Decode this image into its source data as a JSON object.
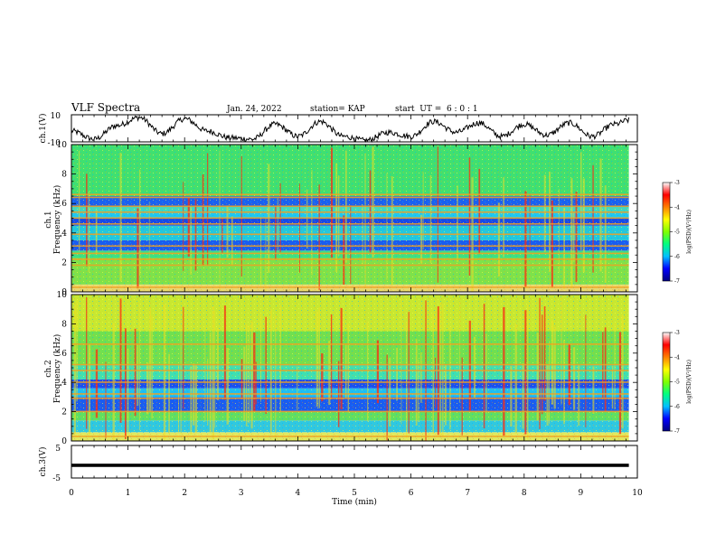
{
  "header": {
    "title": "VLF Spectra",
    "date": "Jan. 24, 2022",
    "station": "station= KAP",
    "start_ut": "start  UT =  6 : 0 : 1"
  },
  "chart_data": [
    {
      "type": "line",
      "panel": "ch1-waveform",
      "ylabel": "ch.1(V)",
      "ylim": [
        -10,
        10
      ],
      "yticks": [
        "10",
        "-10"
      ],
      "x": [
        0,
        0.4,
        0.8,
        1.2,
        1.6,
        2.0,
        2.4,
        2.8,
        3.2,
        3.6,
        4.0,
        4.4,
        4.8,
        5.2,
        5.6,
        6.0,
        6.4,
        6.8,
        7.2,
        7.6,
        8.0,
        8.4,
        8.8,
        9.2,
        9.6,
        9.85
      ],
      "values": [
        -2,
        -8,
        2,
        8,
        -4,
        7,
        -2,
        -7,
        -8,
        3,
        -6,
        5,
        -6,
        -9,
        -3,
        -6,
        5,
        -3,
        4,
        -6,
        3,
        -5,
        4,
        -6,
        3,
        6
      ],
      "line_color": "#000000"
    },
    {
      "type": "heatmap",
      "panel": "ch1-spectrogram",
      "ylabel": "ch.1\nFrequency  (kHz)",
      "xlim": [
        0,
        10
      ],
      "ylim": [
        0,
        10
      ],
      "yticks": [
        "0",
        "2",
        "4",
        "6",
        "8",
        "10"
      ],
      "colorbar": {
        "label": "log(PSD)(V²/Hz)",
        "range": [
          -7,
          -3
        ],
        "ticks": [
          "-3",
          "-4",
          "-5",
          "-6",
          "-7"
        ],
        "colors": [
          "#000080",
          "#0000ff",
          "#00c0ff",
          "#00ff80",
          "#80ff00",
          "#ffff00",
          "#ff8000",
          "#ff0000",
          "#ffffff"
        ]
      },
      "data_end_min": 9.85,
      "base_bands": [
        {
          "from": 0.0,
          "to": 0.5,
          "color": "#e8d870"
        },
        {
          "from": 0.5,
          "to": 2.3,
          "color": "#7ee24a"
        },
        {
          "from": 2.3,
          "to": 2.8,
          "color": "#40e080"
        },
        {
          "from": 2.8,
          "to": 3.5,
          "color": "#1a5cf0"
        },
        {
          "from": 3.5,
          "to": 4.5,
          "color": "#20c8e0"
        },
        {
          "from": 4.5,
          "to": 5.0,
          "color": "#1848e8"
        },
        {
          "from": 5.0,
          "to": 5.4,
          "color": "#20c8f0"
        },
        {
          "from": 5.4,
          "to": 5.8,
          "color": "#40d8c0"
        },
        {
          "from": 5.8,
          "to": 6.5,
          "color": "#1a60f0"
        },
        {
          "from": 6.5,
          "to": 10.0,
          "color": "#40e070"
        }
      ],
      "harmonic_lines_khz": [
        0.3,
        1.8,
        2.2,
        2.6,
        3.1,
        3.9,
        4.6,
        5.0,
        5.4,
        5.8,
        6.4,
        6.6
      ]
    },
    {
      "type": "heatmap",
      "panel": "ch2-spectrogram",
      "ylabel": "ch.2\nFrequency  (kHz)",
      "xlim": [
        0,
        10
      ],
      "ylim": [
        0,
        10
      ],
      "yticks": [
        "0",
        "2",
        "4",
        "6",
        "8",
        "10"
      ],
      "colorbar": {
        "label": "log(PSD)(V²/Hz)",
        "range": [
          -7,
          -3
        ],
        "ticks": [
          "-3",
          "-4",
          "-5",
          "-6",
          "-7"
        ],
        "colors": [
          "#000080",
          "#0000ff",
          "#00c0ff",
          "#00ff80",
          "#80ff00",
          "#ffff00",
          "#ff8000",
          "#ff0000",
          "#ffffff"
        ]
      },
      "data_end_min": 9.85,
      "base_bands": [
        {
          "from": 0.0,
          "to": 0.6,
          "color": "#e0e860"
        },
        {
          "from": 0.6,
          "to": 1.4,
          "color": "#30c8e0"
        },
        {
          "from": 1.4,
          "to": 2.0,
          "color": "#60e060"
        },
        {
          "from": 2.0,
          "to": 3.0,
          "color": "#1a5cf0"
        },
        {
          "from": 3.0,
          "to": 3.6,
          "color": "#20c0f0"
        },
        {
          "from": 3.6,
          "to": 4.2,
          "color": "#1a50f0"
        },
        {
          "from": 4.2,
          "to": 5.2,
          "color": "#40e0b0"
        },
        {
          "from": 5.2,
          "to": 7.5,
          "color": "#70e050"
        },
        {
          "from": 7.5,
          "to": 10.0,
          "color": "#c8e830"
        }
      ],
      "harmonic_lines_khz": [
        0.3,
        2.0,
        2.9,
        3.2,
        4.0,
        4.8,
        5.2,
        6.6
      ]
    },
    {
      "type": "line",
      "panel": "ch3-waveform",
      "ylabel": "ch.3(V)",
      "xlabel": "Time  (min)",
      "ylim": [
        -5,
        5
      ],
      "yticks": [
        "5",
        "-5"
      ],
      "xticks": [
        "0",
        "1",
        "2",
        "3",
        "4",
        "5",
        "6",
        "7",
        "8",
        "9",
        "10"
      ],
      "xlim": [
        0,
        10
      ],
      "band_values": [
        -1.6,
        -0.6
      ],
      "data_end_min": 9.85,
      "line_color": "#000000"
    }
  ]
}
